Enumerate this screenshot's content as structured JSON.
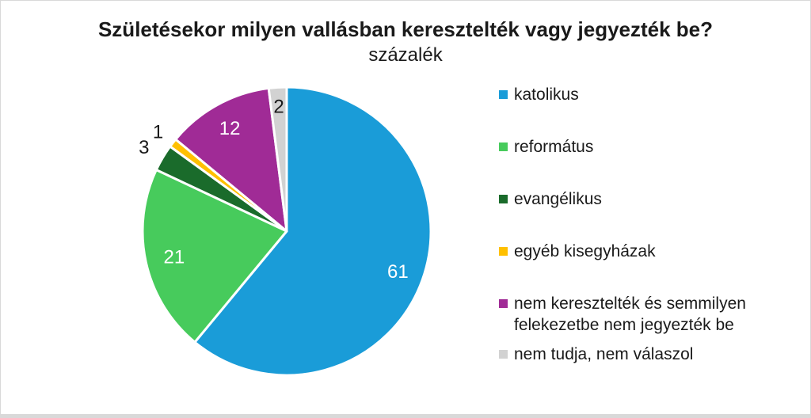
{
  "header": {
    "title": "Születésekor milyen vallásban keresztelték vagy jegyezték be?",
    "subtitle": "százalék"
  },
  "chart_data": {
    "type": "pie",
    "title": "Születésekor milyen vallásban keresztelték vagy jegyezték be?",
    "subtitle": "százalék",
    "unit": "percent",
    "start_angle_deg": 0,
    "direction": "clockwise",
    "legend_position": "right",
    "categories": [
      "katolikus",
      "református",
      "evangélikus",
      "egyéb kisegyházak",
      "nem keresztelték és semmilyen felekezetbe nem jegyezték be",
      "nem tudja, nem válaszol"
    ],
    "values": [
      61,
      21,
      3,
      1,
      12,
      2
    ],
    "slices": [
      {
        "id": "katolikus",
        "label": "katolikus",
        "value": 61,
        "value_text": "61",
        "color": "#1A9CD8",
        "label_color": "#ffffff",
        "label_r": 0.82,
        "label_inside": true
      },
      {
        "id": "reformatus",
        "label": "református",
        "value": 21,
        "value_text": "21",
        "color": "#47CB5C",
        "label_color": "#ffffff",
        "label_r": 0.8,
        "label_inside": true
      },
      {
        "id": "evangelikus",
        "label": "evangélikus",
        "value": 3,
        "value_text": "3",
        "color": "#1A6B2B",
        "label_color": "#1a1a1a",
        "label_r": 1.15,
        "label_inside": false
      },
      {
        "id": "egyeb-kisegyhazak",
        "label": "egyéb kisegyházak",
        "value": 1,
        "value_text": "1",
        "color": "#FFC000",
        "label_color": "#1a1a1a",
        "label_r": 1.13,
        "label_inside": false
      },
      {
        "id": "nem-kereszteltek",
        "label": "nem keresztelték és semmilyen felekezetbe nem jegyezték be",
        "value": 12,
        "value_text": "12",
        "color": "#A02B96",
        "label_color": "#ffffff",
        "label_r": 0.82,
        "label_inside": true
      },
      {
        "id": "nem-tudja",
        "label": "nem tudja, nem válaszol",
        "value": 2,
        "value_text": "2",
        "color": "#D2D2D2",
        "label_color": "#1a1a1a",
        "label_r": 0.87,
        "label_inside": true
      }
    ],
    "slice_border_color": "#ffffff"
  }
}
